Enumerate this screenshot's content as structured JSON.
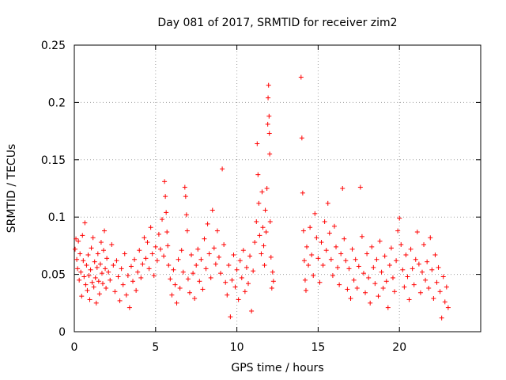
{
  "chart_data": {
    "type": "scatter",
    "title": "Day 081 of 2017, SRMTID for receiver zim2",
    "xlabel": "GPS time / hours",
    "ylabel": "SRMTID / TECUs",
    "xlim": [
      0,
      25
    ],
    "ylim": [
      0,
      0.25
    ],
    "x_ticks": [
      0,
      5,
      10,
      15,
      20
    ],
    "x_tick_labels": [
      "0",
      "5",
      "10",
      "15",
      "20"
    ],
    "y_ticks": [
      0,
      0.05,
      0.1,
      0.15,
      0.2,
      0.25
    ],
    "y_tick_labels": [
      "0",
      "0.05",
      "0.1",
      "0.15",
      "0.2",
      "0.25"
    ],
    "grid": true,
    "marker": "+",
    "color": "#ff0000",
    "series": [
      {
        "name": "zim2",
        "points": [
          [
            0.05,
            0.072
          ],
          [
            0.1,
            0.081
          ],
          [
            0.15,
            0.063
          ],
          [
            0.2,
            0.055
          ],
          [
            0.25,
            0.079
          ],
          [
            0.3,
            0.045
          ],
          [
            0.35,
            0.068
          ],
          [
            0.4,
            0.052
          ],
          [
            0.45,
            0.031
          ],
          [
            0.5,
            0.084
          ],
          [
            0.55,
            0.062
          ],
          [
            0.6,
            0.048
          ],
          [
            0.65,
            0.095
          ],
          [
            0.7,
            0.041
          ],
          [
            0.75,
            0.058
          ],
          [
            0.8,
            0.036
          ],
          [
            0.85,
            0.067
          ],
          [
            0.9,
            0.049
          ],
          [
            0.95,
            0.028
          ],
          [
            1.0,
            0.054
          ],
          [
            1.05,
            0.073
          ],
          [
            1.1,
            0.043
          ],
          [
            1.15,
            0.082
          ],
          [
            1.2,
            0.039
          ],
          [
            1.25,
            0.061
          ],
          [
            1.3,
            0.047
          ],
          [
            1.35,
            0.025
          ],
          [
            1.4,
            0.056
          ],
          [
            1.45,
            0.068
          ],
          [
            1.5,
            0.044
          ],
          [
            1.55,
            0.033
          ],
          [
            1.6,
            0.059
          ],
          [
            1.65,
            0.078
          ],
          [
            1.7,
            0.051
          ],
          [
            1.75,
            0.042
          ],
          [
            1.8,
            0.071
          ],
          [
            1.85,
            0.088
          ],
          [
            1.9,
            0.055
          ],
          [
            1.95,
            0.038
          ],
          [
            2.0,
            0.064
          ],
          [
            2.1,
            0.052
          ],
          [
            2.2,
            0.045
          ],
          [
            2.3,
            0.076
          ],
          [
            2.4,
            0.058
          ],
          [
            2.5,
            0.035
          ],
          [
            2.6,
            0.062
          ],
          [
            2.7,
            0.048
          ],
          [
            2.8,
            0.027
          ],
          [
            2.9,
            0.055
          ],
          [
            3.0,
            0.041
          ],
          [
            3.1,
            0.068
          ],
          [
            3.2,
            0.032
          ],
          [
            3.3,
            0.049
          ],
          [
            3.4,
            0.021
          ],
          [
            3.5,
            0.057
          ],
          [
            3.6,
            0.044
          ],
          [
            3.7,
            0.063
          ],
          [
            3.8,
            0.036
          ],
          [
            3.9,
            0.052
          ],
          [
            4.0,
            0.071
          ],
          [
            4.1,
            0.047
          ],
          [
            4.2,
            0.059
          ],
          [
            4.3,
            0.082
          ],
          [
            4.4,
            0.064
          ],
          [
            4.5,
            0.078
          ],
          [
            4.6,
            0.055
          ],
          [
            4.7,
            0.091
          ],
          [
            4.8,
            0.068
          ],
          [
            4.9,
            0.049
          ],
          [
            5.0,
            0.074
          ],
          [
            5.1,
            0.062
          ],
          [
            5.2,
            0.085
          ],
          [
            5.3,
            0.072
          ],
          [
            5.4,
            0.098
          ],
          [
            5.5,
            0.066
          ],
          [
            5.55,
            0.131
          ],
          [
            5.6,
            0.118
          ],
          [
            5.65,
            0.104
          ],
          [
            5.7,
            0.087
          ],
          [
            5.75,
            0.075
          ],
          [
            5.8,
            0.058
          ],
          [
            5.9,
            0.046
          ],
          [
            6.0,
            0.032
          ],
          [
            6.1,
            0.054
          ],
          [
            6.2,
            0.041
          ],
          [
            6.3,
            0.025
          ],
          [
            6.4,
            0.063
          ],
          [
            6.5,
            0.038
          ],
          [
            6.6,
            0.071
          ],
          [
            6.7,
            0.052
          ],
          [
            6.8,
            0.126
          ],
          [
            6.85,
            0.118
          ],
          [
            6.9,
            0.102
          ],
          [
            6.95,
            0.088
          ],
          [
            7.0,
            0.046
          ],
          [
            7.1,
            0.034
          ],
          [
            7.2,
            0.067
          ],
          [
            7.3,
            0.051
          ],
          [
            7.4,
            0.029
          ],
          [
            7.5,
            0.058
          ],
          [
            7.6,
            0.072
          ],
          [
            7.7,
            0.044
          ],
          [
            7.8,
            0.063
          ],
          [
            7.9,
            0.037
          ],
          [
            8.0,
            0.081
          ],
          [
            8.1,
            0.055
          ],
          [
            8.2,
            0.094
          ],
          [
            8.3,
            0.068
          ],
          [
            8.4,
            0.047
          ],
          [
            8.5,
            0.106
          ],
          [
            8.6,
            0.073
          ],
          [
            8.7,
            0.059
          ],
          [
            8.8,
            0.088
          ],
          [
            8.9,
            0.065
          ],
          [
            9.0,
            0.051
          ],
          [
            9.1,
            0.142
          ],
          [
            9.2,
            0.076
          ],
          [
            9.3,
            0.043
          ],
          [
            9.4,
            0.032
          ],
          [
            9.5,
            0.058
          ],
          [
            9.6,
            0.013
          ],
          [
            9.7,
            0.045
          ],
          [
            9.8,
            0.067
          ],
          [
            9.9,
            0.039
          ],
          [
            10.0,
            0.054
          ],
          [
            10.1,
            0.028
          ],
          [
            10.2,
            0.062
          ],
          [
            10.3,
            0.047
          ],
          [
            10.4,
            0.071
          ],
          [
            10.5,
            0.035
          ],
          [
            10.6,
            0.056
          ],
          [
            10.7,
            0.042
          ],
          [
            10.8,
            0.066
          ],
          [
            10.9,
            0.018
          ],
          [
            11.0,
            0.053
          ],
          [
            11.1,
            0.078
          ],
          [
            11.2,
            0.096
          ],
          [
            11.25,
            0.164
          ],
          [
            11.3,
            0.137
          ],
          [
            11.35,
            0.112
          ],
          [
            11.4,
            0.084
          ],
          [
            11.5,
            0.068
          ],
          [
            11.55,
            0.122
          ],
          [
            11.6,
            0.091
          ],
          [
            11.65,
            0.075
          ],
          [
            11.7,
            0.058
          ],
          [
            11.75,
            0.106
          ],
          [
            11.8,
            0.087
          ],
          [
            11.85,
            0.125
          ],
          [
            11.9,
            0.181
          ],
          [
            11.92,
            0.204
          ],
          [
            11.95,
            0.215
          ],
          [
            11.98,
            0.188
          ],
          [
            12.0,
            0.173
          ],
          [
            12.02,
            0.155
          ],
          [
            12.05,
            0.096
          ],
          [
            12.1,
            0.065
          ],
          [
            12.15,
            0.038
          ],
          [
            12.2,
            0.052
          ],
          [
            12.25,
            0.044
          ],
          [
            13.95,
            0.222
          ],
          [
            14.0,
            0.169
          ],
          [
            14.05,
            0.121
          ],
          [
            14.1,
            0.088
          ],
          [
            14.15,
            0.062
          ],
          [
            14.2,
            0.045
          ],
          [
            14.25,
            0.036
          ],
          [
            14.3,
            0.074
          ],
          [
            14.4,
            0.058
          ],
          [
            14.5,
            0.091
          ],
          [
            14.6,
            0.067
          ],
          [
            14.7,
            0.049
          ],
          [
            14.8,
            0.103
          ],
          [
            14.9,
            0.082
          ],
          [
            15.0,
            0.064
          ],
          [
            15.1,
            0.043
          ],
          [
            15.2,
            0.078
          ],
          [
            15.3,
            0.058
          ],
          [
            15.4,
            0.096
          ],
          [
            15.5,
            0.071
          ],
          [
            15.6,
            0.112
          ],
          [
            15.7,
            0.086
          ],
          [
            15.8,
            0.063
          ],
          [
            15.9,
            0.049
          ],
          [
            16.0,
            0.092
          ],
          [
            16.1,
            0.074
          ],
          [
            16.2,
            0.056
          ],
          [
            16.3,
            0.041
          ],
          [
            16.4,
            0.068
          ],
          [
            16.5,
            0.125
          ],
          [
            16.6,
            0.081
          ],
          [
            16.7,
            0.062
          ],
          [
            16.8,
            0.037
          ],
          [
            16.9,
            0.055
          ],
          [
            17.0,
            0.029
          ],
          [
            17.1,
            0.072
          ],
          [
            17.2,
            0.045
          ],
          [
            17.3,
            0.063
          ],
          [
            17.4,
            0.038
          ],
          [
            17.5,
            0.057
          ],
          [
            17.6,
            0.126
          ],
          [
            17.7,
            0.083
          ],
          [
            17.8,
            0.051
          ],
          [
            17.9,
            0.034
          ],
          [
            18.0,
            0.068
          ],
          [
            18.1,
            0.047
          ],
          [
            18.2,
            0.025
          ],
          [
            18.3,
            0.074
          ],
          [
            18.4,
            0.056
          ],
          [
            18.5,
            0.042
          ],
          [
            18.6,
            0.063
          ],
          [
            18.7,
            0.031
          ],
          [
            18.8,
            0.079
          ],
          [
            18.9,
            0.052
          ],
          [
            19.0,
            0.038
          ],
          [
            19.1,
            0.066
          ],
          [
            19.2,
            0.044
          ],
          [
            19.3,
            0.021
          ],
          [
            19.4,
            0.058
          ],
          [
            19.5,
            0.073
          ],
          [
            19.6,
            0.047
          ],
          [
            19.7,
            0.035
          ],
          [
            19.8,
            0.062
          ],
          [
            19.9,
            0.088
          ],
          [
            20.0,
            0.099
          ],
          [
            20.1,
            0.076
          ],
          [
            20.2,
            0.054
          ],
          [
            20.3,
            0.039
          ],
          [
            20.4,
            0.067
          ],
          [
            20.5,
            0.048
          ],
          [
            20.6,
            0.028
          ],
          [
            20.7,
            0.072
          ],
          [
            20.8,
            0.055
          ],
          [
            20.9,
            0.041
          ],
          [
            21.0,
            0.063
          ],
          [
            21.1,
            0.087
          ],
          [
            21.2,
            0.059
          ],
          [
            21.3,
            0.034
          ],
          [
            21.4,
            0.052
          ],
          [
            21.5,
            0.076
          ],
          [
            21.6,
            0.045
          ],
          [
            21.7,
            0.061
          ],
          [
            21.8,
            0.038
          ],
          [
            21.9,
            0.082
          ],
          [
            22.0,
            0.054
          ],
          [
            22.1,
            0.029
          ],
          [
            22.2,
            0.067
          ],
          [
            22.3,
            0.043
          ],
          [
            22.4,
            0.056
          ],
          [
            22.5,
            0.035
          ],
          [
            22.6,
            0.012
          ],
          [
            22.7,
            0.048
          ],
          [
            22.8,
            0.026
          ],
          [
            22.9,
            0.039
          ],
          [
            23.0,
            0.021
          ]
        ]
      }
    ]
  }
}
